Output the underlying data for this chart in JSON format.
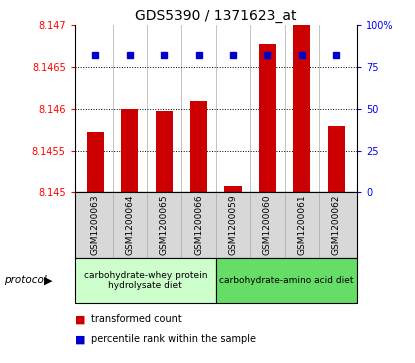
{
  "title": "GDS5390 / 1371623_at",
  "samples": [
    "GSM1200063",
    "GSM1200064",
    "GSM1200065",
    "GSM1200066",
    "GSM1200059",
    "GSM1200060",
    "GSM1200061",
    "GSM1200062"
  ],
  "transformed_count": [
    8.14572,
    8.146,
    8.14598,
    8.1461,
    8.14508,
    8.14678,
    8.147,
    8.1458
  ],
  "percentile_rank": [
    82,
    82,
    82,
    82,
    82,
    82,
    82,
    82
  ],
  "ylim_left": [
    8.145,
    8.147
  ],
  "ylim_right": [
    0,
    100
  ],
  "yticks_left": [
    8.145,
    8.1455,
    8.146,
    8.1465,
    8.147
  ],
  "yticks_right": [
    0,
    25,
    50,
    75,
    100
  ],
  "ytick_labels_left": [
    "8.145",
    "8.1455",
    "8.146",
    "8.1465",
    "8.147"
  ],
  "ytick_labels_right": [
    "0",
    "25",
    "50",
    "75",
    "100%"
  ],
  "bar_color": "#cc0000",
  "dot_color": "#0000cc",
  "bar_bottom": 8.145,
  "groups": [
    {
      "label": "carbohydrate-whey protein\nhydrolysate diet",
      "indices": [
        0,
        3
      ],
      "color": "#ccffcc"
    },
    {
      "label": "carbohydrate-amino acid diet",
      "indices": [
        4,
        7
      ],
      "color": "#66dd66"
    }
  ],
  "protocol_label": "protocol",
  "legend_items": [
    {
      "color": "#cc0000",
      "label": "transformed count"
    },
    {
      "color": "#0000cc",
      "label": "percentile rank within the sample"
    }
  ],
  "background_color": "#ffffff",
  "plot_bg_color": "#ffffff",
  "gray_bg_color": "#d8d8d8",
  "title_fontsize": 10,
  "tick_fontsize": 7,
  "label_fontsize": 7.5
}
